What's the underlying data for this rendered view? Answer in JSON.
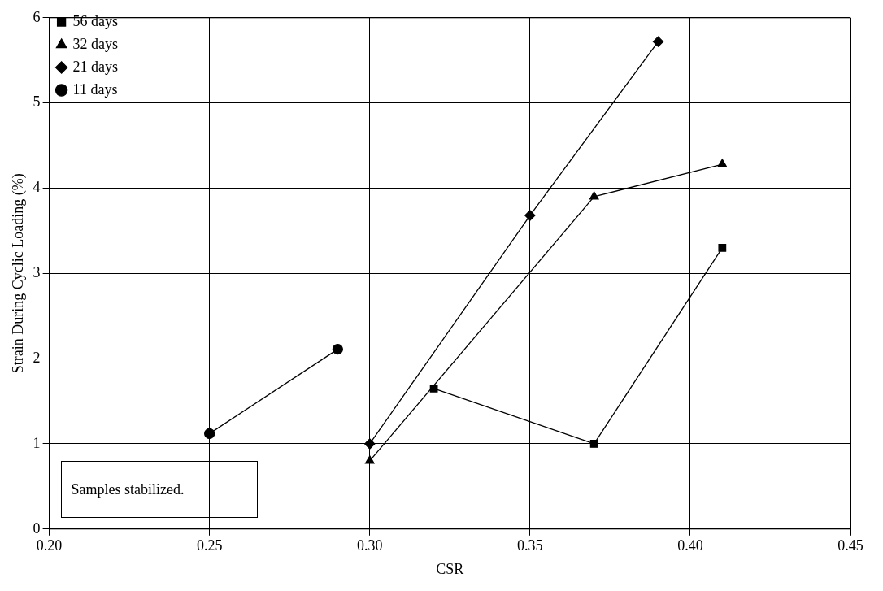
{
  "chart_data": {
    "type": "line",
    "xlabel": "CSR",
    "ylabel": "Strain During Cyclic Loading (%)",
    "xlim": [
      0.2,
      0.45
    ],
    "xticks": [
      {
        "value": 0.2,
        "label": "0.20"
      },
      {
        "value": 0.25,
        "label": "0.25"
      },
      {
        "value": 0.3,
        "label": "0.30"
      },
      {
        "value": 0.35,
        "label": "0.35"
      },
      {
        "value": 0.4,
        "label": "0.40"
      },
      {
        "value": 0.45,
        "label": "0.45"
      }
    ],
    "ylim": [
      0,
      6
    ],
    "yticks": [
      0,
      1,
      2,
      3,
      4,
      5,
      6
    ],
    "grid": true,
    "legend": "top left",
    "line_style": "solid",
    "series": [
      {
        "name": "56 days",
        "color": "#000000",
        "marker": "square",
        "x": [
          0.32,
          0.37,
          0.41
        ],
        "values": [
          1.65,
          1.0,
          3.3
        ]
      },
      {
        "name": "32 days",
        "color": "#000000",
        "marker": "triangle",
        "x": [
          0.3,
          0.37,
          0.41
        ],
        "values": [
          0.8,
          3.9,
          4.28
        ]
      },
      {
        "name": "21 days",
        "color": "#000000",
        "marker": "diamond",
        "x": [
          0.3,
          0.35,
          0.39
        ],
        "values": [
          1.0,
          3.68,
          5.72
        ]
      },
      {
        "name": "11 days",
        "color": "#000000",
        "marker": "circle",
        "x": [
          0.25,
          0.29
        ],
        "values": [
          1.12,
          2.11
        ]
      }
    ],
    "annotations": [
      "Samples stabilized."
    ]
  }
}
